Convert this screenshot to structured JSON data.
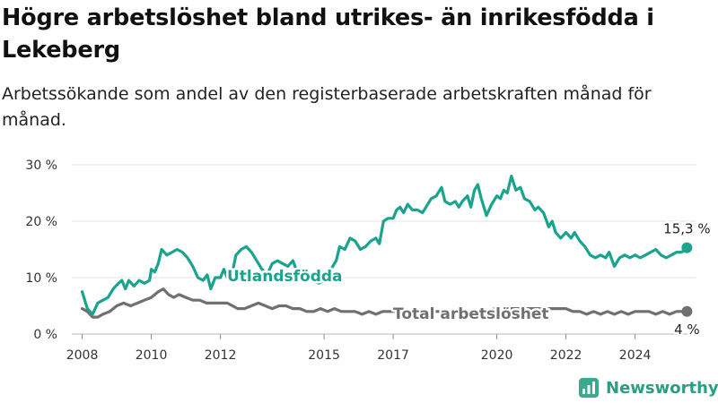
{
  "title": "Högre arbetslöshet bland utrikes- än inrikesfödda i Lekeberg",
  "subtitle": "Arbetssökande som andel av den registerbaserade arbetskraften månad för månad.",
  "brand": {
    "name": "Newsworthy",
    "icon": "bar-chart-logo-icon"
  },
  "chart_data": {
    "type": "line",
    "ylim": [
      0,
      30
    ],
    "xlim": [
      2007.7,
      2025.75
    ],
    "y_ticks": [
      0,
      10,
      20,
      30
    ],
    "y_tick_labels": [
      "0 %",
      "10 %",
      "20 %",
      "30 %"
    ],
    "x_ticks": [
      2008,
      2010,
      2012,
      2015,
      2017,
      2020,
      2022,
      2024
    ],
    "x_tick_labels": [
      "2008",
      "2010",
      "2012",
      "2015",
      "2017",
      "2020",
      "2022",
      "2024"
    ],
    "grid": true,
    "series": [
      {
        "name": "Utlandsfödda",
        "color": "#1aa38d",
        "end_label": "15,3 %",
        "points": [
          [
            2008.0,
            7.5
          ],
          [
            2008.15,
            4.5
          ],
          [
            2008.3,
            3.5
          ],
          [
            2008.45,
            5.5
          ],
          [
            2008.6,
            6.0
          ],
          [
            2008.75,
            6.5
          ],
          [
            2008.9,
            8.0
          ],
          [
            2009.05,
            9.0
          ],
          [
            2009.15,
            9.5
          ],
          [
            2009.25,
            8.0
          ],
          [
            2009.35,
            9.5
          ],
          [
            2009.5,
            8.5
          ],
          [
            2009.65,
            9.5
          ],
          [
            2009.8,
            9.0
          ],
          [
            2009.95,
            9.5
          ],
          [
            2010.0,
            11.5
          ],
          [
            2010.1,
            11.0
          ],
          [
            2010.2,
            12.5
          ],
          [
            2010.3,
            15.0
          ],
          [
            2010.45,
            14.0
          ],
          [
            2010.6,
            14.5
          ],
          [
            2010.75,
            15.0
          ],
          [
            2010.9,
            14.5
          ],
          [
            2011.05,
            13.5
          ],
          [
            2011.2,
            12.0
          ],
          [
            2011.35,
            10.0
          ],
          [
            2011.5,
            9.5
          ],
          [
            2011.62,
            10.5
          ],
          [
            2011.72,
            8.0
          ],
          [
            2011.85,
            10.0
          ],
          [
            2012.0,
            10.0
          ],
          [
            2012.1,
            11.5
          ],
          [
            2012.2,
            10.0
          ],
          [
            2012.3,
            9.5
          ],
          [
            2012.45,
            14.0
          ],
          [
            2012.6,
            15.0
          ],
          [
            2012.75,
            15.5
          ],
          [
            2012.9,
            14.5
          ],
          [
            2013.05,
            13.0
          ],
          [
            2013.2,
            11.5
          ],
          [
            2013.35,
            10.5
          ],
          [
            2013.5,
            12.5
          ],
          [
            2013.65,
            13.0
          ],
          [
            2013.8,
            12.5
          ],
          [
            2013.95,
            12.0
          ],
          [
            2014.1,
            13.0
          ],
          [
            2014.25,
            10.5
          ],
          [
            2014.4,
            10.0
          ],
          [
            2014.55,
            10.5
          ],
          [
            2014.7,
            9.5
          ],
          [
            2014.85,
            9.0
          ],
          [
            2015.0,
            9.5
          ],
          [
            2015.2,
            11.5
          ],
          [
            2015.35,
            13.0
          ],
          [
            2015.45,
            15.5
          ],
          [
            2015.6,
            15.0
          ],
          [
            2015.75,
            17.0
          ],
          [
            2015.9,
            16.5
          ],
          [
            2016.05,
            15.0
          ],
          [
            2016.2,
            15.5
          ],
          [
            2016.35,
            16.5
          ],
          [
            2016.5,
            17.0
          ],
          [
            2016.6,
            16.0
          ],
          [
            2016.72,
            20.0
          ],
          [
            2016.85,
            20.5
          ],
          [
            2017.0,
            20.5
          ],
          [
            2017.1,
            22.0
          ],
          [
            2017.2,
            22.5
          ],
          [
            2017.3,
            21.5
          ],
          [
            2017.42,
            23.0
          ],
          [
            2017.55,
            22.0
          ],
          [
            2017.7,
            22.0
          ],
          [
            2017.85,
            21.5
          ],
          [
            2018.0,
            23.0
          ],
          [
            2018.1,
            24.0
          ],
          [
            2018.25,
            24.5
          ],
          [
            2018.4,
            26.0
          ],
          [
            2018.5,
            23.5
          ],
          [
            2018.65,
            23.0
          ],
          [
            2018.8,
            23.5
          ],
          [
            2018.9,
            22.5
          ],
          [
            2019.0,
            23.5
          ],
          [
            2019.15,
            24.5
          ],
          [
            2019.25,
            22.5
          ],
          [
            2019.35,
            25.5
          ],
          [
            2019.45,
            26.5
          ],
          [
            2019.55,
            24.0
          ],
          [
            2019.7,
            21.0
          ],
          [
            2019.85,
            23.0
          ],
          [
            2020.0,
            24.5
          ],
          [
            2020.1,
            24.0
          ],
          [
            2020.2,
            25.5
          ],
          [
            2020.3,
            25.0
          ],
          [
            2020.42,
            28.0
          ],
          [
            2020.55,
            25.5
          ],
          [
            2020.68,
            26.0
          ],
          [
            2020.8,
            24.0
          ],
          [
            2020.95,
            23.5
          ],
          [
            2021.1,
            22.0
          ],
          [
            2021.2,
            22.5
          ],
          [
            2021.35,
            21.5
          ],
          [
            2021.5,
            19.0
          ],
          [
            2021.6,
            20.0
          ],
          [
            2021.7,
            18.0
          ],
          [
            2021.85,
            17.0
          ],
          [
            2022.0,
            18.0
          ],
          [
            2022.15,
            17.0
          ],
          [
            2022.25,
            18.0
          ],
          [
            2022.4,
            16.5
          ],
          [
            2022.55,
            15.5
          ],
          [
            2022.7,
            14.0
          ],
          [
            2022.85,
            13.5
          ],
          [
            2023.0,
            14.0
          ],
          [
            2023.15,
            13.5
          ],
          [
            2023.25,
            14.5
          ],
          [
            2023.4,
            12.0
          ],
          [
            2023.55,
            13.5
          ],
          [
            2023.7,
            14.0
          ],
          [
            2023.85,
            13.5
          ],
          [
            2024.0,
            14.0
          ],
          [
            2024.15,
            13.5
          ],
          [
            2024.3,
            14.0
          ],
          [
            2024.45,
            14.5
          ],
          [
            2024.6,
            15.0
          ],
          [
            2024.75,
            14.0
          ],
          [
            2024.9,
            13.5
          ],
          [
            2025.05,
            14.0
          ],
          [
            2025.2,
            14.5
          ],
          [
            2025.35,
            14.5
          ],
          [
            2025.5,
            15.3
          ]
        ]
      },
      {
        "name": "Total arbetslöshet",
        "color": "#707070",
        "end_label": "4 %",
        "points": [
          [
            2008.0,
            4.5
          ],
          [
            2008.15,
            4.0
          ],
          [
            2008.3,
            3.0
          ],
          [
            2008.45,
            3.0
          ],
          [
            2008.6,
            3.5
          ],
          [
            2008.8,
            4.0
          ],
          [
            2009.0,
            5.0
          ],
          [
            2009.2,
            5.5
          ],
          [
            2009.4,
            5.0
          ],
          [
            2009.6,
            5.5
          ],
          [
            2009.8,
            6.0
          ],
          [
            2010.0,
            6.5
          ],
          [
            2010.2,
            7.5
          ],
          [
            2010.35,
            8.0
          ],
          [
            2010.5,
            7.0
          ],
          [
            2010.65,
            6.5
          ],
          [
            2010.8,
            7.0
          ],
          [
            2011.0,
            6.5
          ],
          [
            2011.2,
            6.0
          ],
          [
            2011.4,
            6.0
          ],
          [
            2011.6,
            5.5
          ],
          [
            2011.8,
            5.5
          ],
          [
            2012.0,
            5.5
          ],
          [
            2012.2,
            5.5
          ],
          [
            2012.35,
            5.0
          ],
          [
            2012.5,
            4.5
          ],
          [
            2012.7,
            4.5
          ],
          [
            2012.9,
            5.0
          ],
          [
            2013.1,
            5.5
          ],
          [
            2013.3,
            5.0
          ],
          [
            2013.5,
            4.5
          ],
          [
            2013.7,
            5.0
          ],
          [
            2013.9,
            5.0
          ],
          [
            2014.1,
            4.5
          ],
          [
            2014.3,
            4.5
          ],
          [
            2014.5,
            4.0
          ],
          [
            2014.7,
            4.0
          ],
          [
            2014.9,
            4.5
          ],
          [
            2015.1,
            4.0
          ],
          [
            2015.3,
            4.5
          ],
          [
            2015.5,
            4.0
          ],
          [
            2015.7,
            4.0
          ],
          [
            2015.9,
            4.0
          ],
          [
            2016.1,
            3.5
          ],
          [
            2016.3,
            4.0
          ],
          [
            2016.5,
            3.5
          ],
          [
            2016.7,
            4.0
          ],
          [
            2016.9,
            4.0
          ],
          [
            2017.1,
            4.0
          ],
          [
            2017.3,
            4.0
          ],
          [
            2017.6,
            4.0
          ],
          [
            2018.0,
            4.0
          ],
          [
            2018.5,
            4.0
          ],
          [
            2019.0,
            4.0
          ],
          [
            2019.5,
            4.0
          ],
          [
            2020.0,
            4.5
          ],
          [
            2020.3,
            4.5
          ],
          [
            2020.6,
            4.5
          ],
          [
            2020.9,
            4.5
          ],
          [
            2021.2,
            4.5
          ],
          [
            2021.5,
            4.5
          ],
          [
            2021.8,
            4.5
          ],
          [
            2022.0,
            4.5
          ],
          [
            2022.2,
            4.0
          ],
          [
            2022.4,
            4.0
          ],
          [
            2022.6,
            3.5
          ],
          [
            2022.8,
            4.0
          ],
          [
            2023.0,
            3.5
          ],
          [
            2023.2,
            4.0
          ],
          [
            2023.4,
            3.5
          ],
          [
            2023.6,
            4.0
          ],
          [
            2023.8,
            3.5
          ],
          [
            2024.0,
            4.0
          ],
          [
            2024.2,
            4.0
          ],
          [
            2024.4,
            4.0
          ],
          [
            2024.6,
            3.5
          ],
          [
            2024.8,
            4.0
          ],
          [
            2025.0,
            3.5
          ],
          [
            2025.2,
            4.0
          ],
          [
            2025.35,
            4.0
          ],
          [
            2025.5,
            4.0
          ]
        ]
      }
    ]
  }
}
